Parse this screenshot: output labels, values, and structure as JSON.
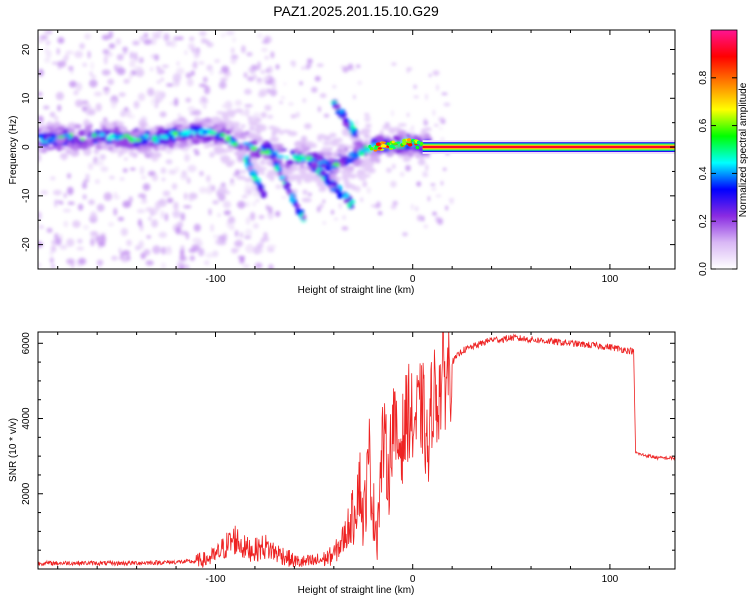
{
  "title": "PAZ1.2025.201.15.10.G29",
  "chart_data": [
    {
      "type": "heatmap",
      "xlabel": "Height of straight line (km)",
      "ylabel": "Frequency (Hz)",
      "xlim": [
        -190,
        133
      ],
      "ylim": [
        -25,
        24
      ],
      "xticks": [
        -100,
        0,
        100
      ],
      "xtick_labels": [
        "-100",
        "0",
        "100"
      ],
      "yticks": [
        -20,
        -10,
        0,
        10,
        20
      ],
      "ytick_labels": [
        "-20",
        "-10",
        "0",
        "10",
        "20"
      ],
      "colorbar": {
        "label": "Normalized spectral amplitude",
        "range": [
          0,
          1
        ],
        "ticks": [
          0.0,
          0.2,
          0.4,
          0.6,
          0.8
        ],
        "tick_labels": [
          "0.0",
          "0.2",
          "0.4",
          "0.6",
          "0.8"
        ],
        "colors": [
          "#ffffff",
          "#d9b8f5",
          "#8a2be2",
          "#0000ff",
          "#00ffff",
          "#00ff00",
          "#ffff00",
          "#ff8000",
          "#ff0000",
          "#ff1493"
        ]
      },
      "ridge": {
        "x": [
          -190,
          -170,
          -150,
          -130,
          -115,
          -100,
          -90,
          -80,
          -70,
          -60,
          -50,
          -40,
          -30,
          -20,
          -10,
          0,
          5,
          133
        ],
        "freq": [
          1.5,
          2.0,
          2.0,
          1.5,
          3.0,
          3.0,
          1.0,
          0.0,
          -1.5,
          -2.0,
          -3.0,
          -4.0,
          -1.5,
          0.0,
          0.5,
          1.0,
          0.0,
          0.0
        ],
        "peak_amplitude": 0.95
      },
      "grid": false
    },
    {
      "type": "line",
      "xlabel": "Height of straight line (km)",
      "ylabel": "SNR (10 * v/v)",
      "xlim": [
        -190,
        133
      ],
      "ylim": [
        0,
        6300
      ],
      "xticks": [
        -100,
        0,
        100
      ],
      "xtick_labels": [
        "-100",
        "0",
        "100"
      ],
      "yticks": [
        2000,
        4000,
        6000
      ],
      "ytick_labels": [
        "2000",
        "4000",
        "6000"
      ],
      "color": "#ee2222",
      "series": [
        {
          "x": [
            -190,
            -170,
            -150,
            -130,
            -110,
            -105,
            -100,
            -95,
            -90,
            -85,
            -80,
            -75,
            -70,
            -65,
            -60,
            -55,
            -50,
            -45,
            -40,
            -35,
            -30,
            -27,
            -25,
            -22,
            -20,
            -18,
            -15,
            -12,
            -10,
            -8,
            -5,
            -2,
            0,
            2,
            5,
            8,
            10,
            12,
            15,
            18,
            20,
            25,
            30,
            35,
            40,
            45,
            50,
            60,
            70,
            80,
            90,
            100,
            105,
            110,
            112,
            113,
            115,
            120,
            125,
            133
          ],
          "y": [
            150,
            160,
            150,
            170,
            200,
            250,
            350,
            600,
            800,
            550,
            500,
            600,
            450,
            350,
            200,
            180,
            200,
            260,
            380,
            800,
            1500,
            2400,
            1200,
            3000,
            1500,
            1100,
            3500,
            2500,
            4100,
            3200,
            3500,
            4300,
            3800,
            4000,
            4300,
            2900,
            4800,
            4500,
            5000,
            5300,
            5500,
            5800,
            5900,
            6000,
            6100,
            6100,
            6150,
            6100,
            6050,
            6000,
            5950,
            5900,
            5850,
            5800,
            5800,
            3100,
            3050,
            3000,
            2950,
            2950
          ]
        }
      ],
      "grid": false
    }
  ]
}
